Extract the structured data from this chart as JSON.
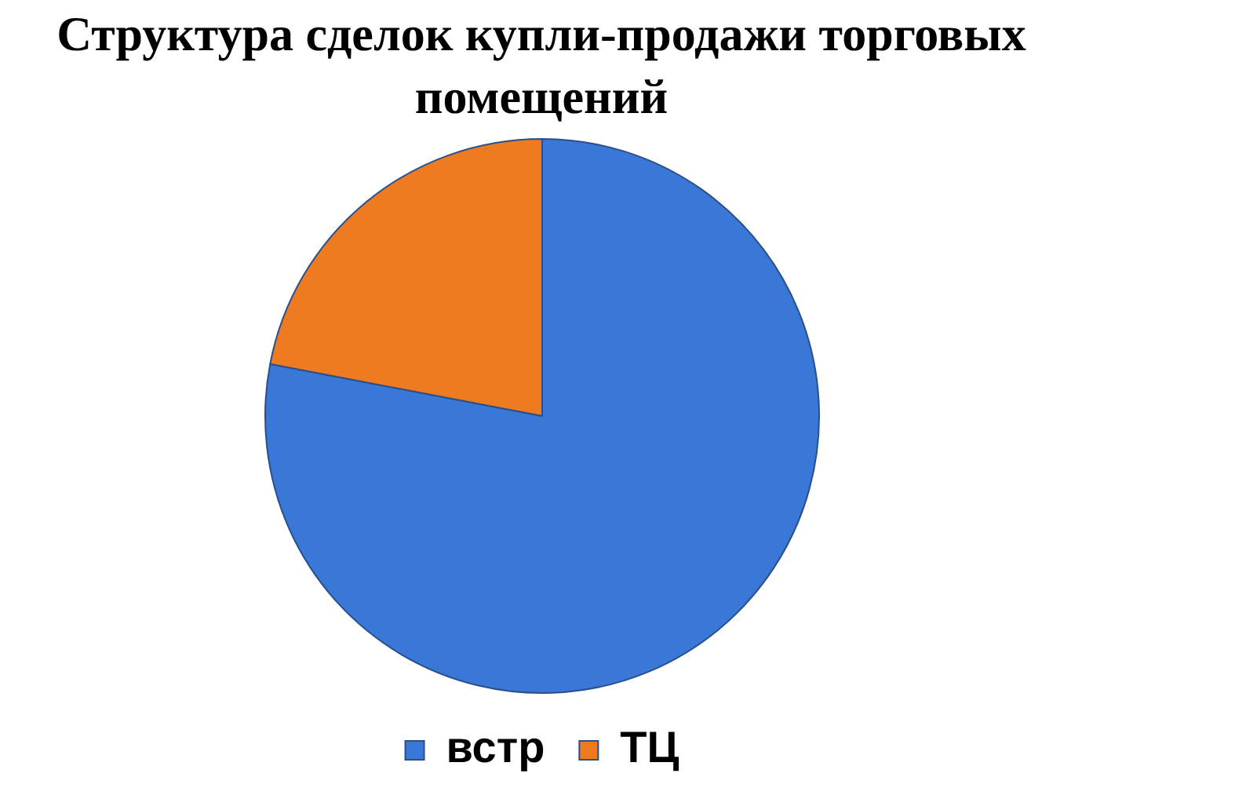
{
  "chart_data": {
    "type": "pie",
    "title": "Структура сделок купли-продажи торговых помещений",
    "categories": [
      "встр",
      "ТЦ"
    ],
    "values": [
      78,
      22
    ],
    "colors": [
      "#3a78d8",
      "#ee7a22"
    ],
    "legend": "bottom"
  }
}
